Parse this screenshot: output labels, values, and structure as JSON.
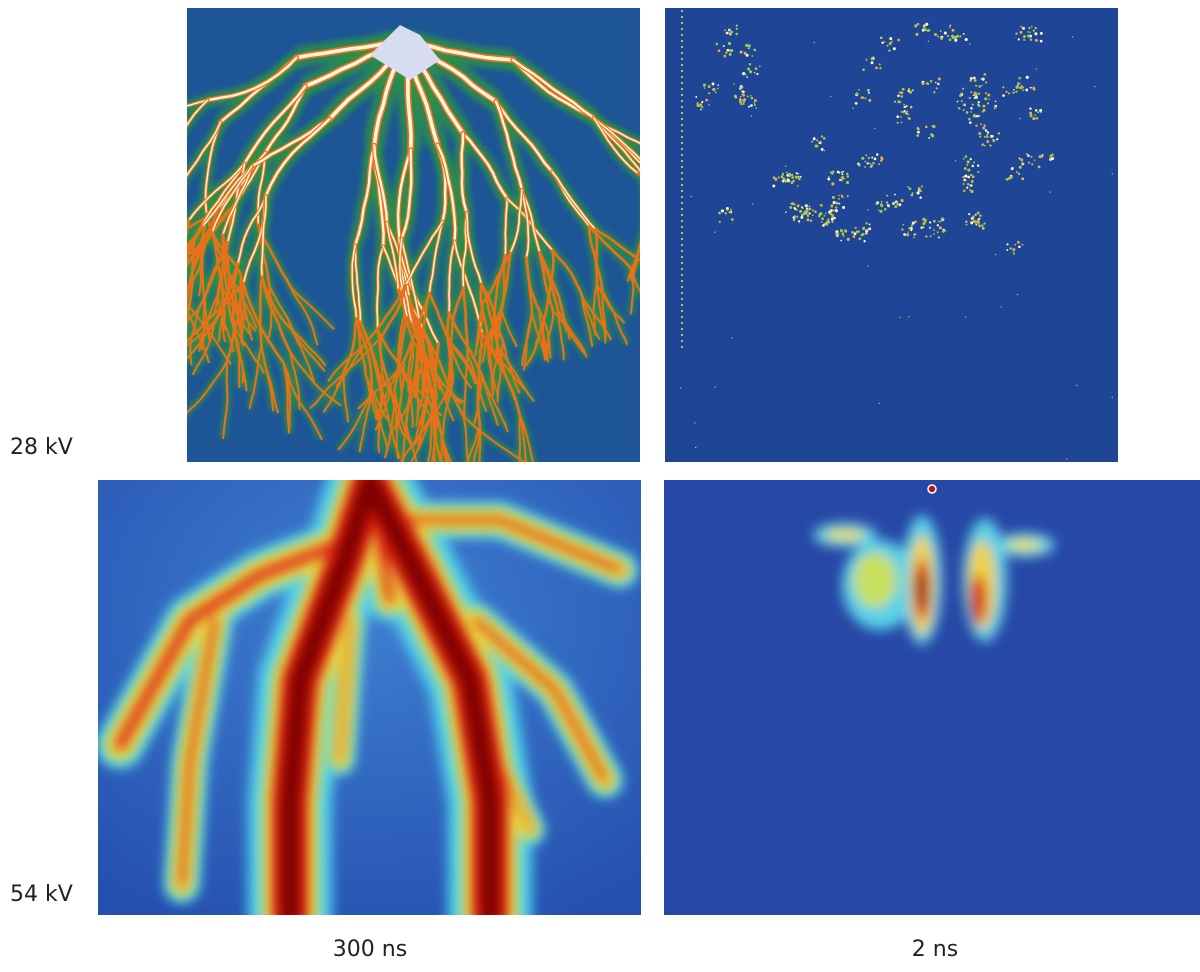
{
  "rows": [
    {
      "label": "28 kV"
    },
    {
      "label": "54 kV"
    }
  ],
  "columns": [
    {
      "label": "300 ns"
    },
    {
      "label": "2 ns"
    }
  ]
}
